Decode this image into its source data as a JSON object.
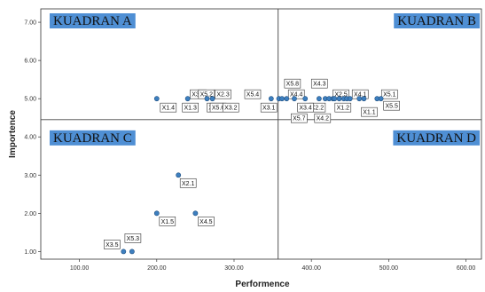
{
  "chart_data": {
    "type": "scatter",
    "title": "",
    "xlabel": "Performence",
    "ylabel": "Importence",
    "xlim": [
      50,
      620
    ],
    "ylim": [
      0.8,
      7.35
    ],
    "x_ticks": [
      "100.00",
      "200.00",
      "300.00",
      "400.00",
      "500.00",
      "600.00"
    ],
    "y_ticks": [
      "1.00",
      "2.00",
      "3.00",
      "4.00",
      "5.00",
      "6.00",
      "7.00"
    ],
    "reference_lines": {
      "x": 357,
      "y": 4.45
    },
    "quadrants": [
      {
        "label": "KUADRAN A",
        "position": "top-left"
      },
      {
        "label": "KUADRAN B",
        "position": "top-right"
      },
      {
        "label": "KUADRAN C",
        "position": "bottom-left"
      },
      {
        "label": "KUADRAN D",
        "position": "bottom-right"
      }
    ],
    "points": [
      {
        "label": "X1.4",
        "x": 200,
        "y": 5.0
      },
      {
        "label": "X1.3",
        "x": 240,
        "y": 5.0
      },
      {
        "label": "X3.3",
        "x": 265,
        "y": 5.0
      },
      {
        "label": "X2.4",
        "x": 272,
        "y": 5.0
      },
      {
        "label": "X5.2",
        "x": 348,
        "y": 5.0
      },
      {
        "label": "X2.3",
        "x": 358,
        "y": 5.0
      },
      {
        "label": "X5.6",
        "x": 362,
        "y": 5.0
      },
      {
        "label": "X3.2",
        "x": 368,
        "y": 5.0
      },
      {
        "label": "X5.4",
        "x": 378,
        "y": 5.0
      },
      {
        "label": "X3.1",
        "x": 392,
        "y": 5.0
      },
      {
        "label": "X2.2",
        "x": 410,
        "y": 5.0
      },
      {
        "label": "X5.8",
        "x": 418,
        "y": 5.0
      },
      {
        "label": "X4.4",
        "x": 423,
        "y": 5.0
      },
      {
        "label": "X3.4",
        "x": 428,
        "y": 5.0
      },
      {
        "label": "X5.7",
        "x": 430,
        "y": 5.0
      },
      {
        "label": "X2.5",
        "x": 436,
        "y": 5.0
      },
      {
        "label": "X4.2",
        "x": 442,
        "y": 5.0
      },
      {
        "label": "X4.3",
        "x": 446,
        "y": 5.0
      },
      {
        "label": "X1.2",
        "x": 450,
        "y": 5.0
      },
      {
        "label": "X4.1",
        "x": 462,
        "y": 5.0
      },
      {
        "label": "X1.1",
        "x": 468,
        "y": 5.0
      },
      {
        "label": "X5.1",
        "x": 485,
        "y": 5.0
      },
      {
        "label": "X5.5",
        "x": 490,
        "y": 5.0
      },
      {
        "label": "X2.1",
        "x": 228,
        "y": 3.0
      },
      {
        "label": "X1.5",
        "x": 200,
        "y": 2.0
      },
      {
        "label": "X4.5",
        "x": 250,
        "y": 2.0
      },
      {
        "label": "X3.5",
        "x": 157,
        "y": 1.0
      },
      {
        "label": "X5.3",
        "x": 168,
        "y": 1.0
      }
    ]
  }
}
